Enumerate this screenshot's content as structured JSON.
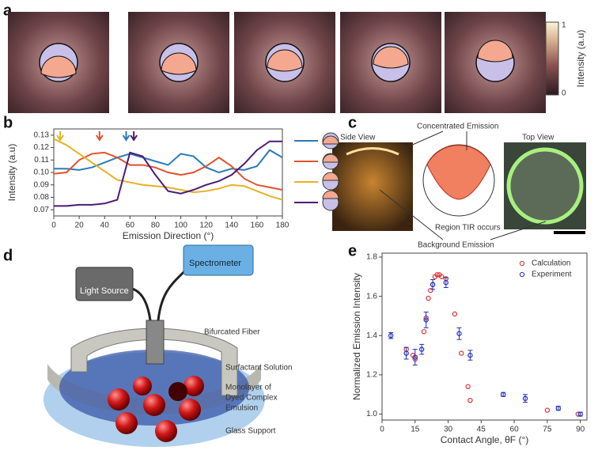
{
  "panel_labels": [
    "a",
    "b",
    "c",
    "d",
    "e"
  ],
  "colorbar": {
    "label": "Intensity (a.u)",
    "ticks": [
      0,
      1
    ]
  },
  "panel_c": {
    "side_view": "Side View",
    "top_view": "Top View",
    "annotations": [
      "Concentrated Emission",
      "Region TIR occurs",
      "Background Emission"
    ]
  },
  "panel_d": {
    "light_source": "Light Source",
    "spectrometer": "Spectrometer",
    "fiber": "Bifurcated Fiber",
    "solution": "Surfactant Solution",
    "monolayer": [
      "Monolayer of",
      "Dyed Complex",
      "Emulsion"
    ],
    "support": "Glass Support"
  },
  "chart_data": [
    {
      "type": "line",
      "ylabel": "Intensity (a.u)",
      "xlabel": "Emission Direction (°)",
      "x": [
        0,
        10,
        20,
        30,
        40,
        50,
        60,
        70,
        80,
        90,
        100,
        110,
        120,
        130,
        140,
        150,
        160,
        170,
        180
      ],
      "xlim": [
        0,
        180
      ],
      "xticks": [
        0,
        20,
        40,
        60,
        80,
        100,
        120,
        140,
        160,
        180
      ],
      "ylim": [
        0.065,
        0.135
      ],
      "yticks": [
        0.07,
        0.08,
        0.09,
        {
          "value": 0.1,
          "label": "0.10"
        },
        0.11,
        0.12,
        0.13
      ],
      "markers": [
        5,
        36,
        57,
        63
      ],
      "series": [
        {
          "color": "#2a7ab8",
          "values": [
            0.103,
            0.103,
            0.102,
            0.104,
            0.108,
            0.112,
            0.115,
            0.112,
            0.109,
            0.106,
            0.115,
            0.113,
            0.104,
            0.1,
            0.103,
            0.102,
            0.105,
            0.118,
            0.112
          ]
        },
        {
          "color": "#e0522c",
          "values": [
            0.099,
            0.1,
            0.11,
            0.115,
            0.116,
            0.112,
            0.106,
            0.106,
            0.104,
            0.1,
            0.098,
            0.1,
            0.105,
            0.112,
            0.105,
            0.095,
            0.09,
            0.088,
            0.086
          ]
        },
        {
          "color": "#e6b224",
          "values": [
            0.127,
            0.122,
            0.115,
            0.108,
            0.101,
            0.094,
            0.092,
            0.09,
            0.089,
            0.088,
            0.086,
            0.084,
            0.085,
            0.087,
            0.09,
            0.089,
            0.085,
            0.081,
            0.078
          ]
        },
        {
          "color": "#4b1a78",
          "values": [
            0.073,
            0.073,
            0.074,
            0.074,
            0.075,
            0.078,
            0.116,
            0.113,
            0.098,
            0.085,
            0.083,
            0.086,
            0.09,
            0.093,
            0.098,
            0.107,
            0.118,
            0.125,
            0.125
          ]
        }
      ]
    },
    {
      "type": "scatter",
      "ylabel": "Normalized Emission Intensity",
      "xlabel": "Contact Angle, θF (°)",
      "xlim": [
        0,
        93
      ],
      "xticks": [
        0,
        15,
        30,
        45,
        60,
        75,
        90
      ],
      "ylim": [
        0.97,
        1.82
      ],
      "yticks": [
        {
          "value": 1,
          "label": "1.0"
        },
        {
          "value": 1.2,
          "label": "1.2"
        },
        {
          "value": 1.4,
          "label": "1.4"
        },
        {
          "value": 1.6,
          "label": "1.6"
        },
        {
          "value": 1.8,
          "label": "1.8"
        }
      ],
      "legend": "upper right",
      "series": [
        {
          "name": "Calculation",
          "color": "#e03030",
          "x": [
            11,
            14,
            15,
            19,
            20,
            21,
            22,
            23,
            24,
            25,
            26,
            27,
            29,
            33,
            36,
            39,
            40,
            75,
            89
          ],
          "values": [
            1.33,
            1.3,
            1.28,
            1.42,
            1.49,
            1.59,
            1.63,
            1.66,
            1.7,
            1.71,
            1.71,
            1.7,
            1.69,
            1.51,
            1.31,
            1.14,
            1.07,
            1.02,
            1.0
          ]
        },
        {
          "name": "Experiment",
          "color": "#2030c0",
          "x": [
            4,
            11,
            15,
            18,
            20,
            23,
            29,
            35,
            40,
            55,
            65,
            80,
            90
          ],
          "values": [
            1.4,
            1.31,
            1.29,
            1.33,
            1.48,
            1.66,
            1.67,
            1.41,
            1.3,
            1.1,
            1.08,
            1.03,
            1.0
          ],
          "errors": [
            0.015,
            0.03,
            0.04,
            0.025,
            0.04,
            0.025,
            0.025,
            0.03,
            0.025,
            0.01,
            0.02,
            0.01,
            0.01
          ]
        }
      ]
    }
  ]
}
